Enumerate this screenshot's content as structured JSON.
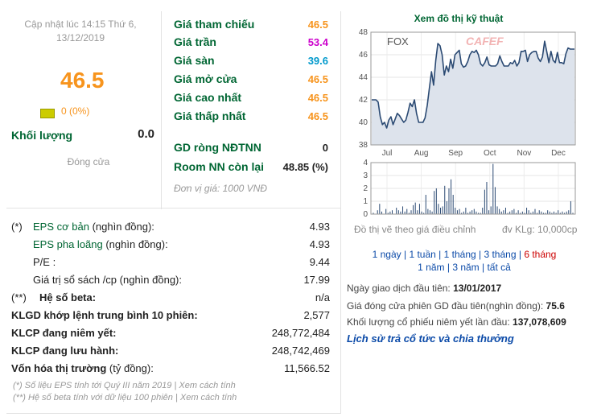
{
  "left_panel": {
    "updated": "Cập nhật lúc 14:15 Thứ 6, 13/12/2019",
    "price": "46.5",
    "change": "0 (0%)",
    "volume_label": "Khối lượng",
    "volume_value": "0.0",
    "session": "Đóng cửa"
  },
  "prices": {
    "rows": [
      {
        "label": "Giá tham chiếu",
        "value": "46.5",
        "color": "#f7941d"
      },
      {
        "label": "Giá trần",
        "value": "53.4",
        "color": "#cc00cc"
      },
      {
        "label": "Giá sàn",
        "value": "39.6",
        "color": "#0099cc"
      },
      {
        "label": "Giá mở cửa",
        "value": "46.5",
        "color": "#f7941d"
      },
      {
        "label": "Giá cao nhất",
        "value": "46.5",
        "color": "#f7941d"
      },
      {
        "label": "Giá thấp nhất",
        "value": "46.5",
        "color": "#f7941d"
      }
    ],
    "foreign": [
      {
        "label": "GD ròng NĐTNN",
        "value": "0"
      },
      {
        "label": "Room NN còn lại",
        "value": "48.85 (%)"
      }
    ],
    "unit_note": "Đơn vị giá: 1000 VNĐ"
  },
  "fundamentals": {
    "rows": [
      {
        "prefix": "(*)",
        "label": "EPS cơ bản",
        "suffix": " (nghìn đồng):",
        "value": "4.93"
      },
      {
        "prefix": "",
        "label": "EPS pha loãng",
        "suffix": " (nghìn đồng):",
        "value": "4.93"
      },
      {
        "prefix": "",
        "label": "P/E :",
        "suffix": "",
        "value": "9.44"
      },
      {
        "prefix": "",
        "label": "Giá trị sổ sách /cp",
        "suffix": " (nghìn đồng):",
        "value": "17.99"
      },
      {
        "prefix": "(**)",
        "label": "Hệ số beta:",
        "suffix": "",
        "value": "n/a"
      },
      {
        "prefix": "",
        "label": "KLGD khớp lệnh trung bình 10 phiên:",
        "suffix": "",
        "value": "2,577"
      },
      {
        "prefix": "",
        "label": "KLCP đang niêm yết:",
        "suffix": "",
        "value": "248,772,484"
      },
      {
        "prefix": "",
        "label": "KLCP đang lưu hành:",
        "suffix": "",
        "value": "248,742,469"
      },
      {
        "prefix": "",
        "label": "Vốn hóa thị trường",
        "suffix": " (tỷ đồng):",
        "value": "11,566.52"
      }
    ],
    "note1": "(*) Số liệu EPS tính tới Quý III năm 2019 | Xem cách tính",
    "note2": "(**) Hệ số beta tính với dữ liệu 100 phiên | Xem cách tính"
  },
  "chart": {
    "title": "Xem đồ thị kỹ thuật",
    "ticker": "FOX",
    "brand": "CAFEF",
    "foot_left": "Đồ thị vẽ theo giá điều chỉnh",
    "foot_right": "đv KLg: 10,000cp",
    "periods_line1": [
      "1 ngày",
      "1 tuần",
      "1 tháng",
      "3 tháng",
      "6 tháng"
    ],
    "periods_line2": [
      "1 năm",
      "3 năm",
      "tất cả"
    ],
    "selected_period": "6 tháng"
  },
  "info": {
    "first_trade_label": "Ngày giao dịch đầu tiên:",
    "first_trade_value": "13/01/2017",
    "first_close_label": "Giá đóng cửa phiên GD đầu tiên(nghìn đồng):",
    "first_close_value": "75.6",
    "first_volume_label": "Khối lượng cổ phiếu niêm yết lần đầu:",
    "first_volume_value": "137,078,609",
    "dividend_link": "Lịch sử trả cổ tức và chia thưởng"
  },
  "chart_data": {
    "type": "line",
    "price_axis": {
      "ylim": [
        38,
        48
      ],
      "ticks": [
        "48",
        "46",
        "44",
        "42",
        "40",
        "38"
      ]
    },
    "volume_axis": {
      "ylim": [
        0,
        4
      ],
      "ticks": [
        "4",
        "3",
        "2",
        "1",
        "0"
      ]
    },
    "x_ticks": [
      "Jul",
      "Aug",
      "Sep",
      "Oct",
      "Nov",
      "Dec"
    ],
    "price": [
      42,
      42,
      42,
      41.8,
      40.5,
      39.8,
      40,
      39.5,
      40.2,
      40.5,
      39.8,
      40.3,
      40.8,
      40.6,
      40.3,
      40,
      40.2,
      40.9,
      41.7,
      41.4,
      42,
      40.8,
      40,
      40,
      40,
      40.4,
      41.5,
      43,
      44.5,
      43.3,
      45.5,
      47,
      46.8,
      46,
      44.2,
      45,
      44.5,
      45.6,
      44.8,
      46,
      46.2,
      46.4,
      45.2,
      44.9,
      45,
      45.4,
      46,
      46.3,
      46.2,
      46.4,
      46,
      45.2,
      45,
      45.3,
      45.8,
      45.1,
      45,
      45,
      45,
      45.2,
      45.9,
      45.4,
      45,
      45,
      45,
      45.3,
      45.2,
      45.5,
      45,
      45.3,
      46.3,
      46.3,
      46.4,
      45.4,
      46,
      46.2,
      46.3,
      46.3,
      45.7,
      45.4,
      45.8,
      47.2,
      46.3,
      45.3,
      46.3,
      45.5,
      45.3,
      46.2,
      45.3,
      45.3,
      45.2,
      46.1,
      46.6,
      46.5,
      46.5,
      46.5
    ],
    "volume": [
      0.1,
      0,
      0.3,
      0.8,
      0.2,
      0,
      0.4,
      0.1,
      0.2,
      0.3,
      0,
      0.5,
      0.3,
      0.2,
      0.6,
      0.2,
      0.4,
      0.1,
      0.3,
      0.7,
      0.9,
      0.3,
      0.8,
      0.2,
      0.1,
      1.5,
      0.4,
      0.3,
      0.2,
      1.8,
      2.0,
      0.8,
      0.5,
      0.6,
      2.2,
      1.0,
      2.0,
      2.7,
      1.5,
      0.5,
      0.3,
      0.4,
      0.1,
      0.2,
      0.5,
      0.1,
      0.2,
      0.3,
      0.4,
      0.2,
      0.1,
      0.1,
      0.5,
      1.9,
      2.5,
      0.3,
      0.6,
      3.9,
      2.1,
      0.6,
      0.4,
      0.2,
      0.3,
      0.5,
      0.1,
      0.2,
      0.3,
      0.4,
      0.1,
      0.3,
      0.1,
      0.2,
      0.1,
      0.5,
      0.3,
      0.1,
      0.2,
      0.4,
      0.1,
      0.3,
      0.2,
      0.1,
      0.1,
      0.3,
      0.2,
      0.1,
      0.2,
      0.1,
      0.3,
      0.1,
      0.2,
      0.1,
      0.2,
      0.3,
      1.0,
      0.1
    ],
    "grid": true
  }
}
